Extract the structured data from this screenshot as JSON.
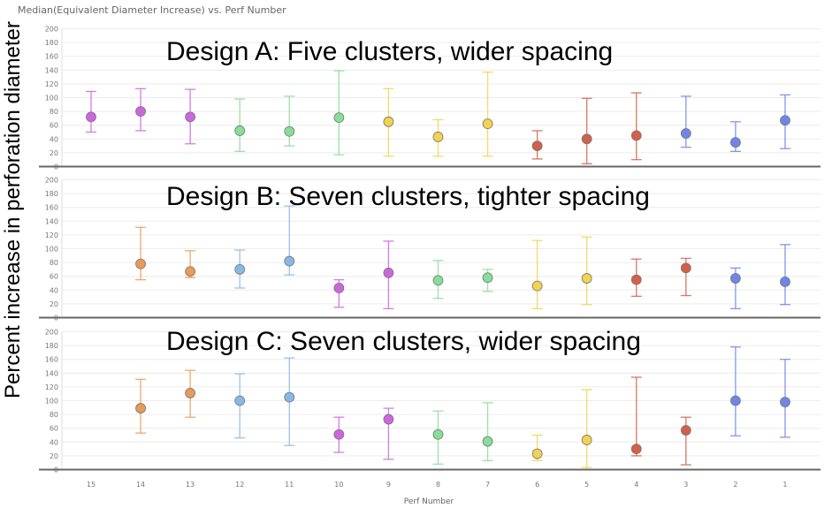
{
  "chart_data": {
    "type": "scatter",
    "title": "Median(Equivalent Diameter Increase) vs. Perf Number",
    "xlabel": "Perf Number",
    "ylabel": "Percent increase in perforation diameter",
    "categories": [
      "15",
      "14",
      "13",
      "12",
      "11",
      "10",
      "9",
      "8",
      "7",
      "6",
      "5",
      "4",
      "3",
      "2",
      "1"
    ],
    "yticks": [
      0,
      20,
      40,
      60,
      80,
      100,
      120,
      140,
      160,
      180,
      200
    ],
    "ylim": [
      0,
      200
    ],
    "grid": true,
    "colors": {
      "purple": "#cc66dd",
      "orange": "#e89a58",
      "blue": "#8ab8e6",
      "green": "#88dd99",
      "yellow": "#f2d24e",
      "red": "#d2604a",
      "indigo": "#6f86e8"
    },
    "panels": [
      {
        "title": "Design A: Five clusters, wider spacing",
        "points": [
          {
            "x": "15",
            "y": 72,
            "low": 50,
            "high": 109,
            "color": "purple"
          },
          {
            "x": "14",
            "y": 80,
            "low": 52,
            "high": 113,
            "color": "purple"
          },
          {
            "x": "13",
            "y": 72,
            "low": 33,
            "high": 112,
            "color": "purple"
          },
          {
            "x": "12",
            "y": 52,
            "low": 22,
            "high": 98,
            "color": "green"
          },
          {
            "x": "11",
            "y": 51,
            "low": 30,
            "high": 102,
            "color": "green"
          },
          {
            "x": "10",
            "y": 71,
            "low": 17,
            "high": 139,
            "color": "green"
          },
          {
            "x": "9",
            "y": 65,
            "low": 15,
            "high": 113,
            "color": "yellow"
          },
          {
            "x": "8",
            "y": 43,
            "low": 15,
            "high": 68,
            "color": "yellow"
          },
          {
            "x": "7",
            "y": 62,
            "low": 15,
            "high": 137,
            "color": "yellow"
          },
          {
            "x": "6",
            "y": 30,
            "low": 11,
            "high": 52,
            "color": "red"
          },
          {
            "x": "5",
            "y": 40,
            "low": 4,
            "high": 99,
            "color": "red"
          },
          {
            "x": "4",
            "y": 45,
            "low": 10,
            "high": 107,
            "color": "red"
          },
          {
            "x": "3",
            "y": 48,
            "low": 28,
            "high": 102,
            "color": "indigo"
          },
          {
            "x": "2",
            "y": 35,
            "low": 22,
            "high": 65,
            "color": "indigo"
          },
          {
            "x": "1",
            "y": 67,
            "low": 26,
            "high": 104,
            "color": "indigo"
          }
        ]
      },
      {
        "title": "Design B: Seven clusters, tighter spacing",
        "points": [
          {
            "x": "14",
            "y": 78,
            "low": 55,
            "high": 131,
            "color": "orange"
          },
          {
            "x": "13",
            "y": 67,
            "low": 58,
            "high": 97,
            "color": "orange"
          },
          {
            "x": "12",
            "y": 70,
            "low": 43,
            "high": 98,
            "color": "blue"
          },
          {
            "x": "11",
            "y": 82,
            "low": 62,
            "high": 162,
            "color": "blue"
          },
          {
            "x": "10",
            "y": 43,
            "low": 15,
            "high": 55,
            "color": "purple"
          },
          {
            "x": "9",
            "y": 65,
            "low": 13,
            "high": 111,
            "color": "purple"
          },
          {
            "x": "8",
            "y": 54,
            "low": 28,
            "high": 83,
            "color": "green"
          },
          {
            "x": "7",
            "y": 58,
            "low": 38,
            "high": 70,
            "color": "green"
          },
          {
            "x": "6",
            "y": 46,
            "low": 13,
            "high": 112,
            "color": "yellow"
          },
          {
            "x": "5",
            "y": 57,
            "low": 19,
            "high": 117,
            "color": "yellow"
          },
          {
            "x": "4",
            "y": 55,
            "low": 31,
            "high": 85,
            "color": "red"
          },
          {
            "x": "3",
            "y": 72,
            "low": 32,
            "high": 86,
            "color": "red"
          },
          {
            "x": "2",
            "y": 57,
            "low": 13,
            "high": 72,
            "color": "indigo"
          },
          {
            "x": "1",
            "y": 52,
            "low": 19,
            "high": 106,
            "color": "indigo"
          }
        ]
      },
      {
        "title": "Design C: Seven clusters, wider spacing",
        "points": [
          {
            "x": "14",
            "y": 89,
            "low": 53,
            "high": 131,
            "color": "orange"
          },
          {
            "x": "13",
            "y": 111,
            "low": 76,
            "high": 144,
            "color": "orange"
          },
          {
            "x": "12",
            "y": 100,
            "low": 46,
            "high": 139,
            "color": "blue"
          },
          {
            "x": "11",
            "y": 105,
            "low": 35,
            "high": 162,
            "color": "blue"
          },
          {
            "x": "10",
            "y": 51,
            "low": 25,
            "high": 76,
            "color": "purple"
          },
          {
            "x": "9",
            "y": 73,
            "low": 15,
            "high": 89,
            "color": "purple"
          },
          {
            "x": "8",
            "y": 51,
            "low": 8,
            "high": 85,
            "color": "green"
          },
          {
            "x": "7",
            "y": 41,
            "low": 13,
            "high": 97,
            "color": "green"
          },
          {
            "x": "6",
            "y": 23,
            "low": 13,
            "high": 50,
            "color": "yellow"
          },
          {
            "x": "5",
            "y": 43,
            "low": 3,
            "high": 116,
            "color": "yellow"
          },
          {
            "x": "4",
            "y": 30,
            "low": 20,
            "high": 134,
            "color": "red"
          },
          {
            "x": "3",
            "y": 57,
            "low": 7,
            "high": 76,
            "color": "red"
          },
          {
            "x": "2",
            "y": 100,
            "low": 49,
            "high": 178,
            "color": "indigo"
          },
          {
            "x": "1",
            "y": 98,
            "low": 47,
            "high": 160,
            "color": "indigo"
          }
        ]
      }
    ]
  }
}
